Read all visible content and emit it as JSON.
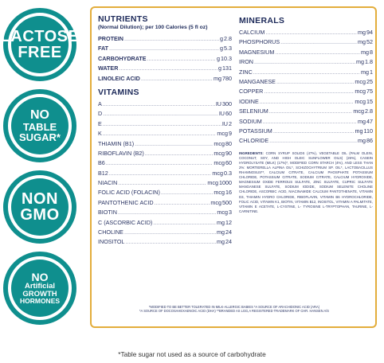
{
  "badges": {
    "lactose": [
      "LACTOSE",
      "FREE"
    ],
    "sugar": [
      "NO",
      "TABLE",
      "SUGAR*"
    ],
    "gmo": [
      "NON",
      "GMO"
    ],
    "hormones": [
      "NO",
      "Artificial",
      "GROWTH",
      "HORMONES"
    ]
  },
  "nutrients": {
    "title": "NUTRIENTS",
    "subtitle": "(Normal Dilution); per 100 Calories (5 fl oz)",
    "rows": [
      {
        "name": "PROTEIN",
        "unit": "g",
        "value": "2.8"
      },
      {
        "name": "FAT",
        "unit": "g",
        "value": "5.3"
      },
      {
        "name": "CARBOHYDRATE",
        "unit": "g",
        "value": "10.3"
      },
      {
        "name": "WATER",
        "unit": "g",
        "value": "131"
      },
      {
        "name": "LINOLEIC ACID",
        "unit": "mg",
        "value": "780"
      }
    ]
  },
  "vitamins": {
    "title": "VITAMINS",
    "rows": [
      {
        "name": "A",
        "unit": "IU",
        "value": "300"
      },
      {
        "name": "D",
        "unit": "IU",
        "value": "60"
      },
      {
        "name": "E",
        "unit": "IU",
        "value": "2"
      },
      {
        "name": "K",
        "unit": "mcg",
        "value": "9"
      },
      {
        "name": "THIAMIN (B1)",
        "unit": "mcg",
        "value": "80"
      },
      {
        "name": "RIBOFLAVIN (B2)",
        "unit": "mcg",
        "value": "90"
      },
      {
        "name": "B6",
        "unit": "mcg",
        "value": "60"
      },
      {
        "name": "B12",
        "unit": "mcg",
        "value": "0.3"
      },
      {
        "name": "NIACIN",
        "unit": "mcg",
        "value": "1000"
      },
      {
        "name": "FOLIC ACID (FOLACIN)",
        "unit": "mcg",
        "value": "16"
      },
      {
        "name": "PANTOTHENIC ACID",
        "unit": "mcg",
        "value": "500"
      },
      {
        "name": "BIOTIN",
        "unit": "mcg",
        "value": "3"
      },
      {
        "name": "C (ASCORBIC ACID)",
        "unit": "mg",
        "value": "12"
      },
      {
        "name": "CHOLINE",
        "unit": "mg",
        "value": "24"
      },
      {
        "name": "INOSITOL",
        "unit": "mg",
        "value": "24"
      }
    ]
  },
  "minerals": {
    "title": "MINERALS",
    "rows": [
      {
        "name": "CALCIUM",
        "unit": "mg",
        "value": "94"
      },
      {
        "name": "PHOSPHORUS",
        "unit": "mg",
        "value": "52"
      },
      {
        "name": "MAGNESIUM",
        "unit": "mg",
        "value": "8"
      },
      {
        "name": "IRON",
        "unit": "mg",
        "value": "1.8"
      },
      {
        "name": "ZINC",
        "unit": "mg",
        "value": "1"
      },
      {
        "name": "MANGANESE",
        "unit": "mcg",
        "value": "25"
      },
      {
        "name": "COPPER",
        "unit": "mcg",
        "value": "75"
      },
      {
        "name": "IODINE",
        "unit": "mcg",
        "value": "15"
      },
      {
        "name": "SELENIUM",
        "unit": "mcg",
        "value": "2.8"
      },
      {
        "name": "SODIUM",
        "unit": "mg",
        "value": "47"
      },
      {
        "name": "POTASSIUM",
        "unit": "mg",
        "value": "110"
      },
      {
        "name": "CHLORIDE",
        "unit": "mg",
        "value": "86"
      }
    ]
  },
  "ingredients": {
    "label": "INGREDIENTS:",
    "text": "CORN SYRUP SOLIDS (47%), VEGETABLE OIL (PALM OLEIN, COCONUT, SOY, AND HIGH OLEIC SUNFLOWER OILS) (26%), CASEIN HYDROLYSATE (MILK) (17%)*, MODIFIED CORN STARCH (4%), AND LESS THAN 2%: MORTIERELLA ALPINA OIL*, SCHIZOCHYTRIUM SP. OIL*, LACTOBACILLUS RHAMNOSUS**, CALCIUM CITRATE, CALCIUM PHOSPHATE POTASSIUM CHLORIDE, POTASSIUM CITRATE, SODIUM CITRATE, CALCIUM HYDROXIDE, MAGNESIUM OXIDE FERROUS SULFATE, ZINC SULFATE, CUPRIC SULFATE MANGANESE SULFATE, SODIUM IODIDE, SODIUM SELENITE CHOLINE CHLORIDE, ASCORBIC ACID, NIACINAMIDE CALCIUM PANTOTHENATE, VITAMIN D3, THIAMIN HYDRO CHLORIDE, RIBOFLAVIN, VITAMIN B6 HYDROCHLORIDE, FOLIC ACID, VITAMIN K1, BIOTIN, VITAMIN B12, INOSITOL, VITAMIN A PALMITATE, VITAMIN E ACETATE, L-CYSTINE, L- TYROSINE L-TRYPTOPHAN, TAURINE, L-CARNITINE."
  },
  "footnotes": [
    "*MODIFIED TO BE BETTER TOLERATED IN MILK-ALLERGIC BABIES *A SOURCE OF ARACHIDONIC ACID (ARA)",
    "*A SOURCE OF DOCOSAHEXAENOIC ACID (DHA) **BRANDED AS LGG,A REGISTERED TRADEMARK OF CHR. HANSEN A/S"
  ],
  "note": "*Table sugar not used as a source of carbohydrate",
  "colors": {
    "teal": "#0f8f8e",
    "gold_border": "#e3ad3b",
    "navy": "#1d2a5a"
  }
}
